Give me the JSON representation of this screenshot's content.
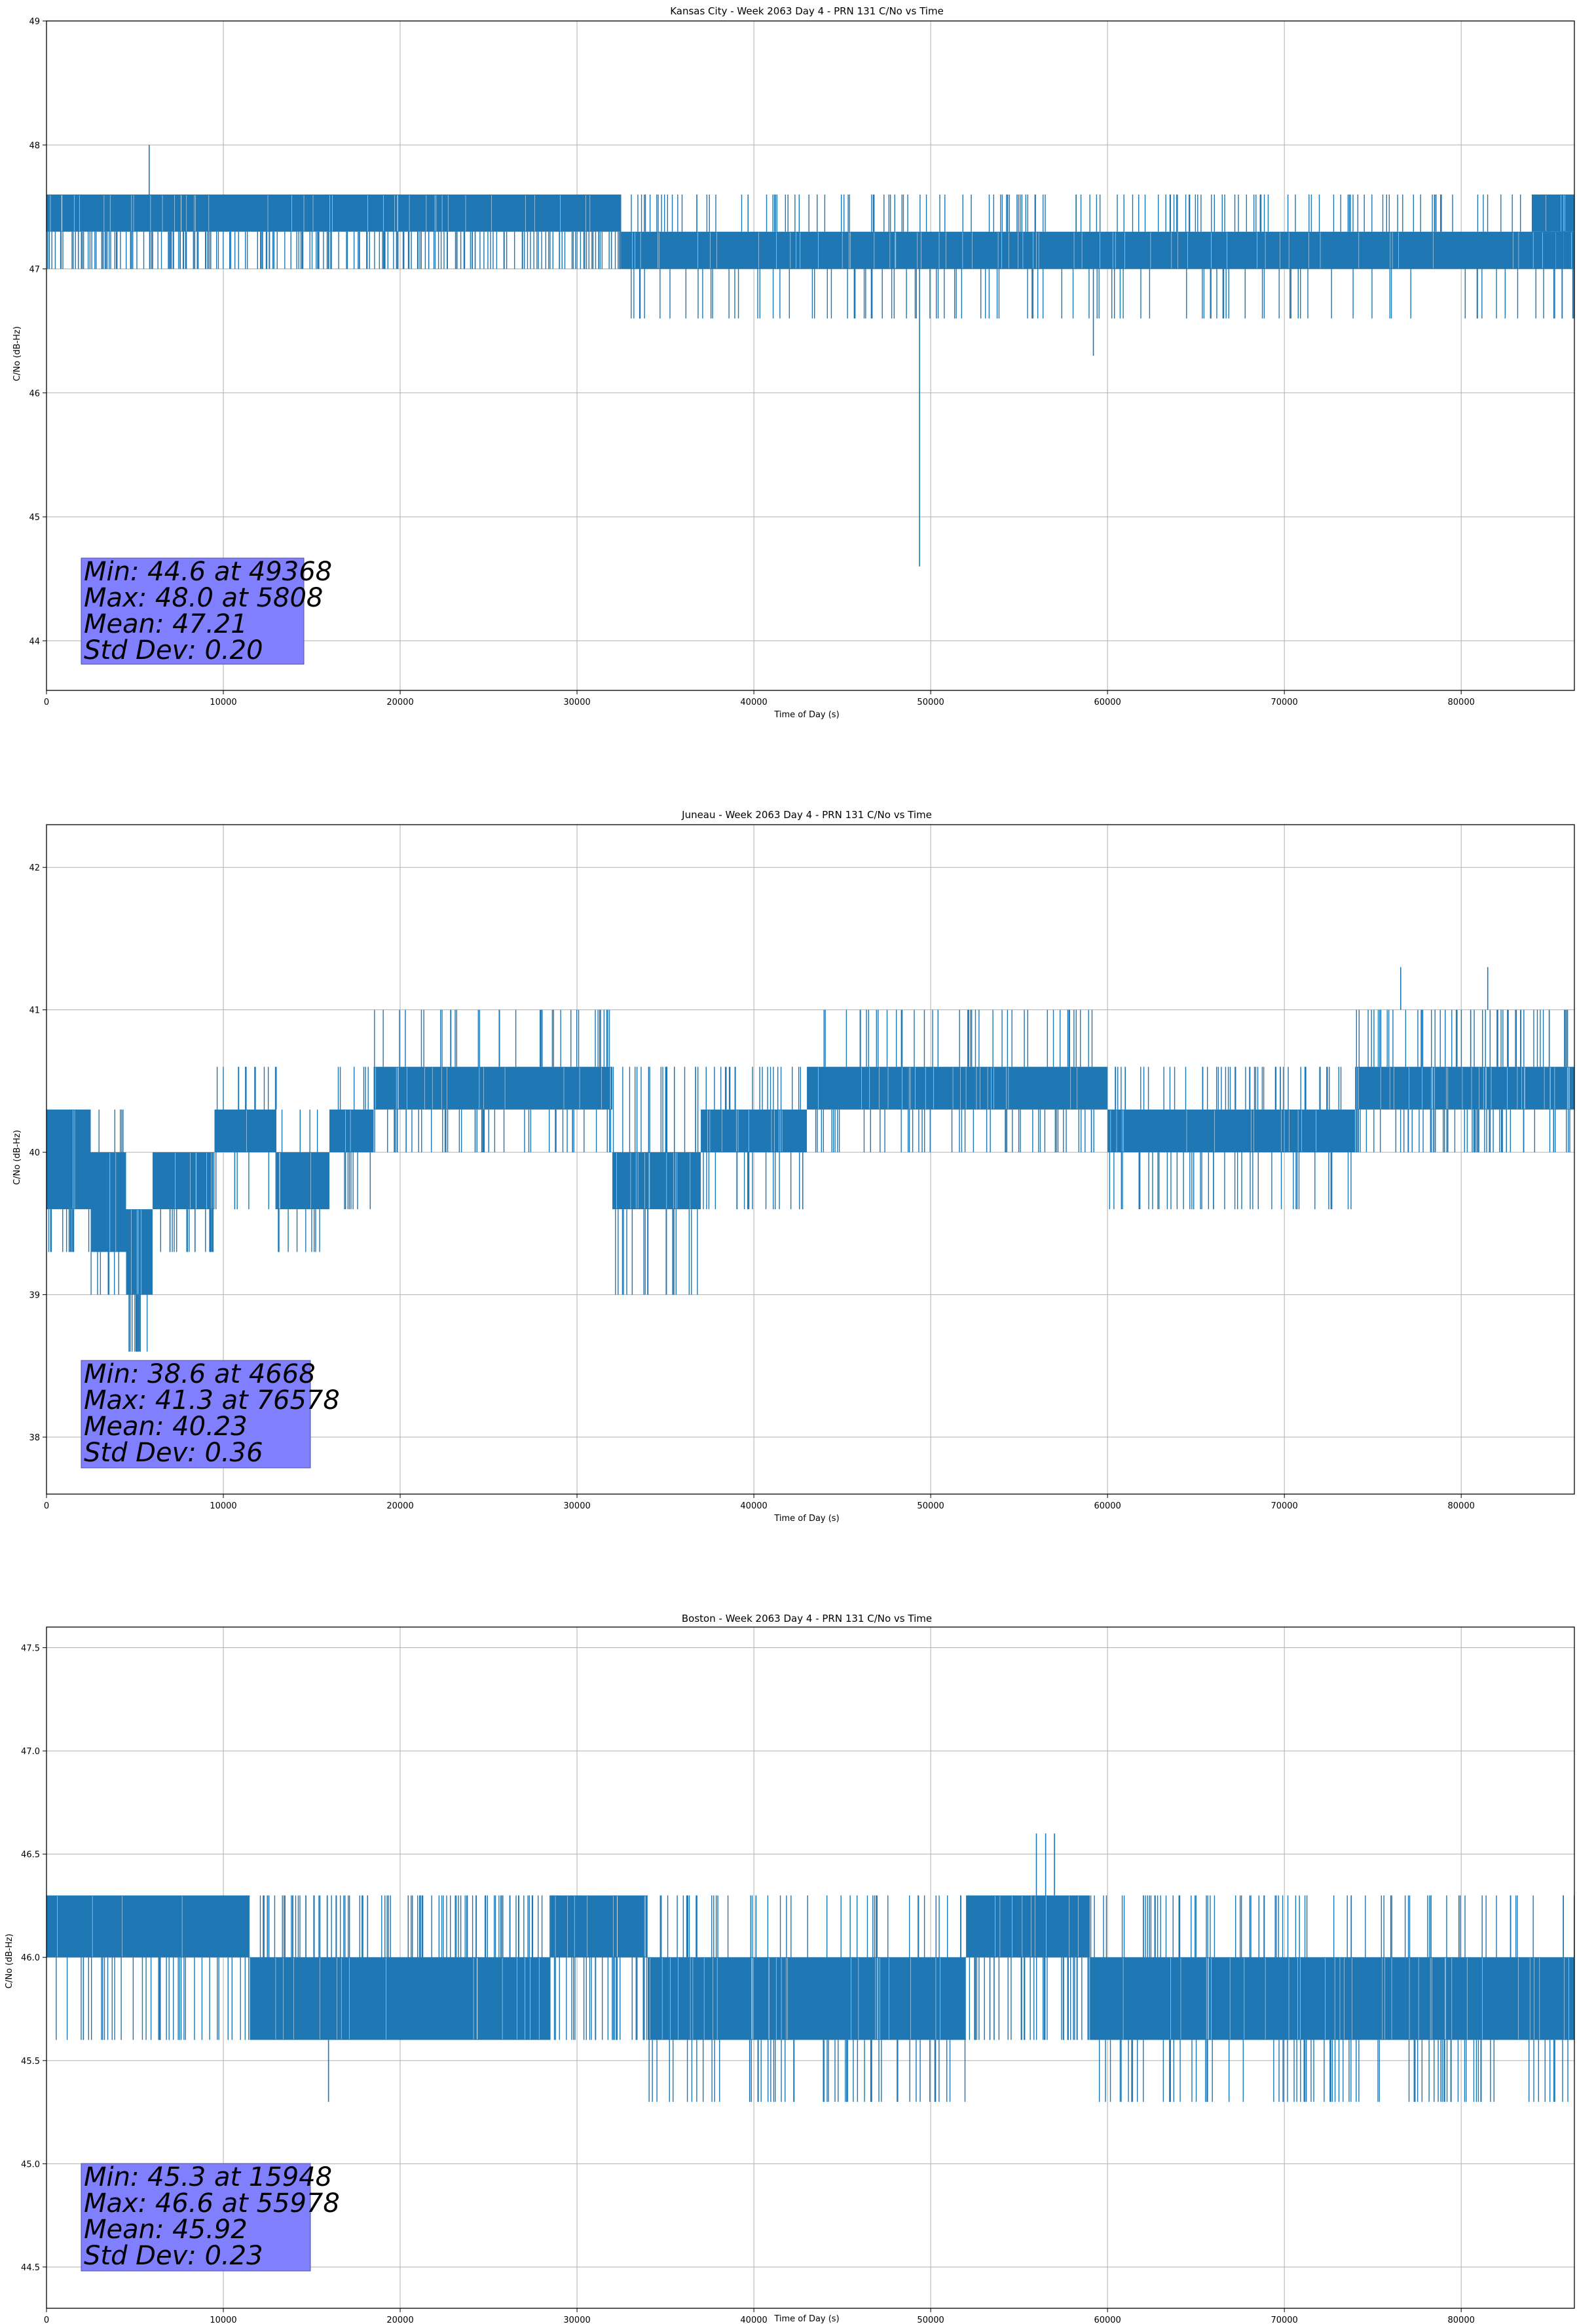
{
  "figure": {
    "background": "#ffffff"
  },
  "style": {
    "series_color": "#1f77b4",
    "grid_color": "#b0b0b0",
    "stats_box_color": "#8080ff"
  },
  "chart_data": [
    {
      "type": "line",
      "title": "Kansas City - Week 2063 Day 4 - PRN 131 C/No vs Time",
      "xlabel": "Time of Day (s)",
      "ylabel": "C/No (dB-Hz)",
      "xlim": [
        0,
        86400
      ],
      "ylim": [
        43.6,
        49.0
      ],
      "xticks": [
        0,
        10000,
        20000,
        30000,
        40000,
        50000,
        60000,
        70000,
        80000
      ],
      "xtick_labels": [
        "0",
        "10000",
        "20000",
        "30000",
        "40000",
        "50000",
        "60000",
        "70000",
        "80000"
      ],
      "yticks": [
        44,
        45,
        46,
        47,
        48,
        49
      ],
      "ytick_labels": [
        "44",
        "45",
        "46",
        "47",
        "48",
        "49"
      ],
      "grid": true,
      "stats_lines": [
        "Min: 44.6 at 49368",
        "Max: 48.0 at 5808",
        "Mean: 47.21",
        "Std Dev: 0.20"
      ],
      "outliers": [
        {
          "x": 5808,
          "y": 48.0
        },
        {
          "x": 49368,
          "y": 44.6
        },
        {
          "x": 59200,
          "y": 46.3
        }
      ],
      "segments": [
        {
          "x0": 0,
          "x1": 32500,
          "lo": 47.3,
          "hi": 47.6,
          "upper_spike": 47.6,
          "lower_spike": 47.0,
          "spike_count": 220
        },
        {
          "x0": 32500,
          "x1": 86400,
          "lo": 47.0,
          "hi": 47.3,
          "upper_spike": 47.6,
          "lower_spike": 46.6,
          "spike_count": 260
        },
        {
          "x0": 84000,
          "x1": 86400,
          "lo": 47.3,
          "hi": 47.6,
          "upper_spike": 47.6,
          "lower_spike": 47.0,
          "spike_count": 20
        }
      ]
    },
    {
      "type": "line",
      "title": "Juneau - Week 2063 Day 4 - PRN 131 C/No vs Time",
      "xlabel": "Time of Day (s)",
      "ylabel": "C/No (dB-Hz)",
      "xlim": [
        0,
        86400
      ],
      "ylim": [
        37.6,
        42.3
      ],
      "xticks": [
        0,
        10000,
        20000,
        30000,
        40000,
        50000,
        60000,
        70000,
        80000
      ],
      "xtick_labels": [
        "0",
        "10000",
        "20000",
        "30000",
        "40000",
        "50000",
        "60000",
        "70000",
        "80000"
      ],
      "yticks": [
        38,
        39,
        40,
        41,
        42
      ],
      "ytick_labels": [
        "38",
        "39",
        "40",
        "41",
        "42"
      ],
      "grid": true,
      "stats_lines": [
        "Min: 38.6 at 4668",
        "Max: 41.3 at 76578",
        "Mean: 40.23",
        "Std Dev: 0.36"
      ],
      "outliers": [
        {
          "x": 4668,
          "y": 38.6
        },
        {
          "x": 5200,
          "y": 38.6
        },
        {
          "x": 76578,
          "y": 41.3
        },
        {
          "x": 81500,
          "y": 41.3
        }
      ],
      "segments": [
        {
          "x0": 0,
          "x1": 2500,
          "lo": 39.6,
          "hi": 40.3,
          "upper_spike": 40.3,
          "lower_spike": 39.3,
          "spike_count": 12
        },
        {
          "x0": 2500,
          "x1": 4500,
          "lo": 39.3,
          "hi": 40.0,
          "upper_spike": 40.3,
          "lower_spike": 39.0,
          "spike_count": 12
        },
        {
          "x0": 4500,
          "x1": 6000,
          "lo": 39.0,
          "hi": 39.6,
          "upper_spike": 39.6,
          "lower_spike": 38.6,
          "spike_count": 10
        },
        {
          "x0": 6000,
          "x1": 9500,
          "lo": 39.6,
          "hi": 40.0,
          "upper_spike": 40.0,
          "lower_spike": 39.3,
          "spike_count": 18
        },
        {
          "x0": 9500,
          "x1": 13000,
          "lo": 40.0,
          "hi": 40.3,
          "upper_spike": 40.6,
          "lower_spike": 39.6,
          "spike_count": 20
        },
        {
          "x0": 13000,
          "x1": 16000,
          "lo": 39.6,
          "hi": 40.0,
          "upper_spike": 40.3,
          "lower_spike": 39.3,
          "spike_count": 14
        },
        {
          "x0": 16000,
          "x1": 18500,
          "lo": 40.0,
          "hi": 40.3,
          "upper_spike": 40.6,
          "lower_spike": 39.6,
          "spike_count": 14
        },
        {
          "x0": 18500,
          "x1": 32000,
          "lo": 40.3,
          "hi": 40.6,
          "upper_spike": 41.0,
          "lower_spike": 40.0,
          "spike_count": 80
        },
        {
          "x0": 32000,
          "x1": 37000,
          "lo": 39.6,
          "hi": 40.0,
          "upper_spike": 40.6,
          "lower_spike": 39.0,
          "spike_count": 40
        },
        {
          "x0": 37000,
          "x1": 43000,
          "lo": 40.0,
          "hi": 40.3,
          "upper_spike": 40.6,
          "lower_spike": 39.6,
          "spike_count": 40
        },
        {
          "x0": 43000,
          "x1": 60000,
          "lo": 40.3,
          "hi": 40.6,
          "upper_spike": 41.0,
          "lower_spike": 40.0,
          "spike_count": 90
        },
        {
          "x0": 60000,
          "x1": 74000,
          "lo": 40.0,
          "hi": 40.3,
          "upper_spike": 40.6,
          "lower_spike": 39.6,
          "spike_count": 90
        },
        {
          "x0": 74000,
          "x1": 86400,
          "lo": 40.3,
          "hi": 40.6,
          "upper_spike": 41.0,
          "lower_spike": 40.0,
          "spike_count": 110
        }
      ]
    },
    {
      "type": "line",
      "title": "Boston - Week 2063 Day 4 - PRN 131 C/No vs Time",
      "xlabel": "Time of Day (s)",
      "ylabel": "C/No (dB-Hz)",
      "xlim": [
        0,
        86400
      ],
      "ylim": [
        44.3,
        47.6
      ],
      "xticks": [
        0,
        10000,
        20000,
        30000,
        40000,
        50000,
        60000,
        70000,
        80000
      ],
      "xtick_labels": [
        "0",
        "10000",
        "20000",
        "30000",
        "40000",
        "50000",
        "60000",
        "70000",
        "80000"
      ],
      "yticks": [
        44.5,
        45.0,
        45.5,
        46.0,
        46.5,
        47.0,
        47.5
      ],
      "ytick_labels": [
        "44.5",
        "45.0",
        "45.5",
        "46.0",
        "46.5",
        "47.0",
        "47.5"
      ],
      "grid": true,
      "stats_lines": [
        "Min: 45.3 at 15948",
        "Max: 46.6 at 55978",
        "Mean: 45.92",
        "Std Dev: 0.23"
      ],
      "outliers": [
        {
          "x": 15948,
          "y": 45.3
        },
        {
          "x": 55978,
          "y": 46.6
        },
        {
          "x": 56500,
          "y": 46.6
        },
        {
          "x": 57000,
          "y": 46.6
        }
      ],
      "segments": [
        {
          "x0": 0,
          "x1": 11500,
          "lo": 46.0,
          "hi": 46.3,
          "upper_spike": 46.3,
          "lower_spike": 45.6,
          "spike_count": 40
        },
        {
          "x0": 11500,
          "x1": 28500,
          "lo": 45.6,
          "hi": 46.0,
          "upper_spike": 46.3,
          "lower_spike": 45.6,
          "spike_count": 90
        },
        {
          "x0": 28500,
          "x1": 34000,
          "lo": 46.0,
          "hi": 46.3,
          "upper_spike": 46.3,
          "lower_spike": 45.6,
          "spike_count": 30
        },
        {
          "x0": 34000,
          "x1": 52000,
          "lo": 45.6,
          "hi": 46.0,
          "upper_spike": 46.3,
          "lower_spike": 45.3,
          "spike_count": 100
        },
        {
          "x0": 52000,
          "x1": 59000,
          "lo": 46.0,
          "hi": 46.3,
          "upper_spike": 46.3,
          "lower_spike": 45.6,
          "spike_count": 40
        },
        {
          "x0": 59000,
          "x1": 86400,
          "lo": 45.6,
          "hi": 46.0,
          "upper_spike": 46.3,
          "lower_spike": 45.3,
          "spike_count": 160
        }
      ]
    }
  ]
}
